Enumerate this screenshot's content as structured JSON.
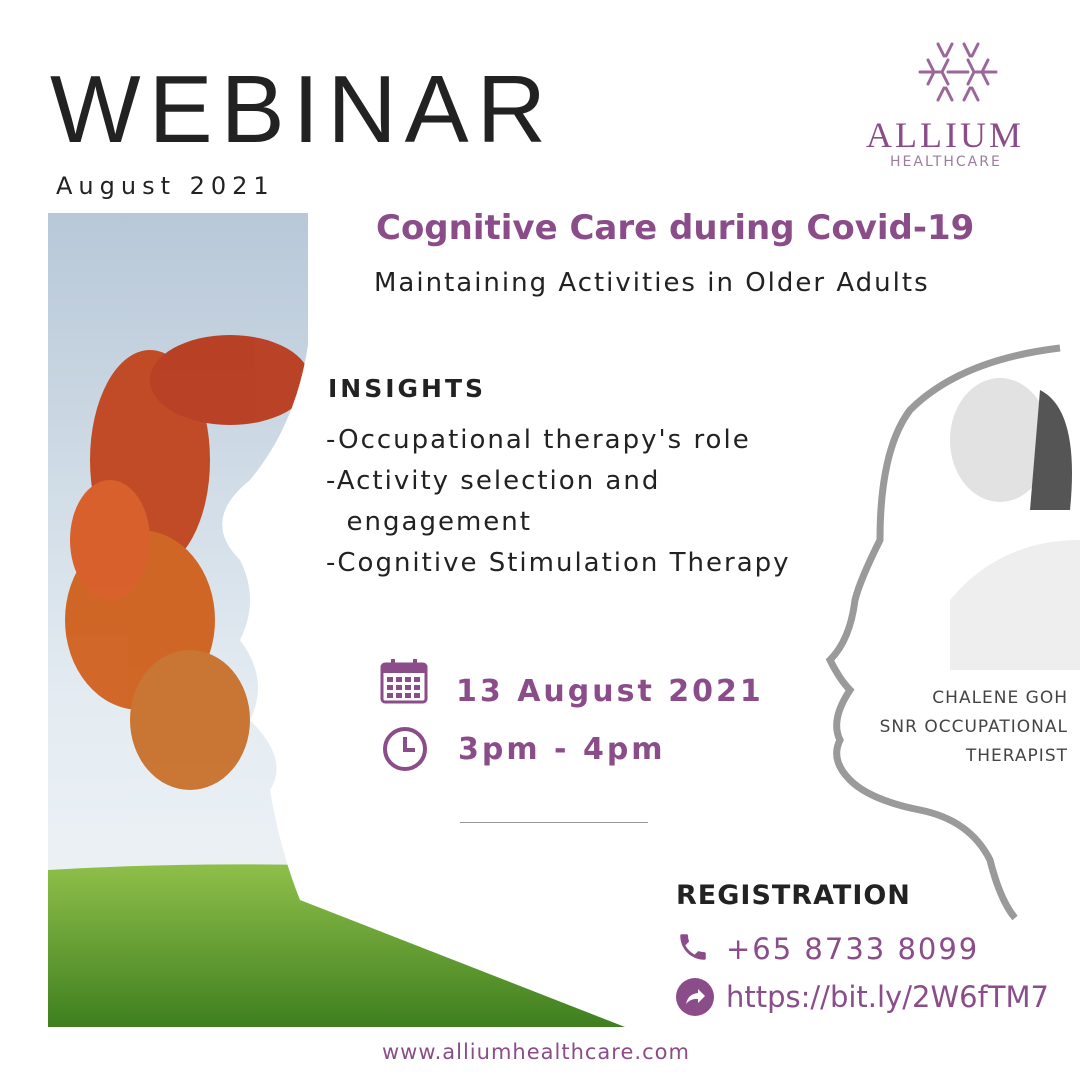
{
  "header": {
    "title": "WEBINAR",
    "month": "August 2021"
  },
  "logo": {
    "name": "ALLIUM",
    "tagline": "HEALTHCARE",
    "icon": "flower-of-life-icon"
  },
  "event": {
    "headline": "Cognitive Care during Covid-19",
    "subtitle": "Maintaining Activities in Older Adults"
  },
  "insights": {
    "heading": "INSIGHTS",
    "items": [
      "-Occupational therapy's role",
      "-Activity selection and",
      "  engagement",
      "-Cognitive Stimulation Therapy"
    ]
  },
  "schedule": {
    "date": "13 August 2021",
    "time": "3pm - 4pm"
  },
  "speaker": {
    "name": "CHALENE GOH",
    "role_line1": "SNR OCCUPATIONAL",
    "role_line2": "THERAPIST"
  },
  "registration": {
    "heading": "REGISTRATION",
    "phone": "+65 8733 8099",
    "link": "https://bit.ly/2W6fTM7"
  },
  "footer": {
    "website": "www.alliumhealthcare.com"
  },
  "colors": {
    "accent": "#8a4d8a",
    "text": "#222222"
  }
}
